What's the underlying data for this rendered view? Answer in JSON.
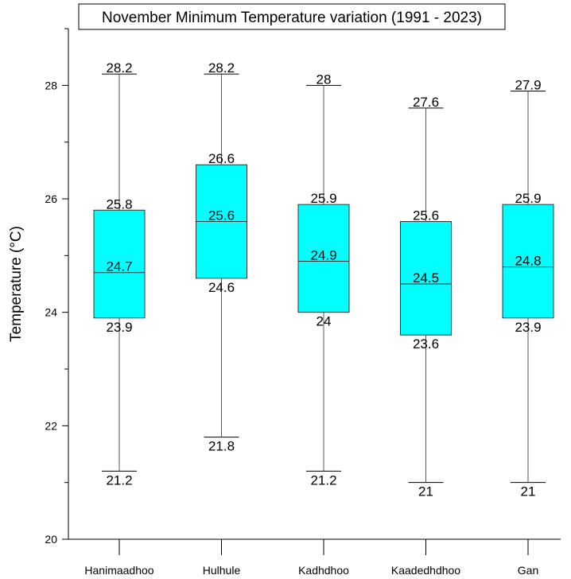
{
  "chart_data": {
    "type": "boxplot",
    "title": "November Minimum Temperature variation (1991 - 2023)",
    "xlabel": "",
    "ylabel": "Temperature (°C)",
    "ylim": [
      20,
      29
    ],
    "yticks": [
      20,
      22,
      24,
      26,
      28
    ],
    "grid": false,
    "box_color": "#00ffff",
    "categories": [
      "Hanimaadhoo",
      "Hulhule",
      "Kadhdhoo",
      "Kaadedhdhoo",
      "Gan"
    ],
    "series": [
      {
        "min": [
          21.2,
          21.8,
          21.2,
          21,
          21
        ],
        "q1": [
          23.9,
          24.6,
          24,
          23.6,
          23.9
        ],
        "median": [
          24.7,
          25.6,
          24.9,
          24.5,
          24.8
        ],
        "q3": [
          25.8,
          26.6,
          25.9,
          25.6,
          25.9
        ],
        "max": [
          28.2,
          28.2,
          28,
          27.6,
          27.9
        ]
      }
    ],
    "labels": {
      "min": [
        "21.2",
        "21.8",
        "21.2",
        "21",
        "21"
      ],
      "q1": [
        "23.9",
        "24.6",
        "24",
        "23.6",
        "23.9"
      ],
      "median": [
        "24.7",
        "25.6",
        "24.9",
        "24.5",
        "24.8"
      ],
      "q3": [
        "25.8",
        "26.6",
        "25.9",
        "25.6",
        "25.9"
      ],
      "max": [
        "28.2",
        "28.2",
        "28",
        "27.6",
        "27.9"
      ]
    }
  }
}
